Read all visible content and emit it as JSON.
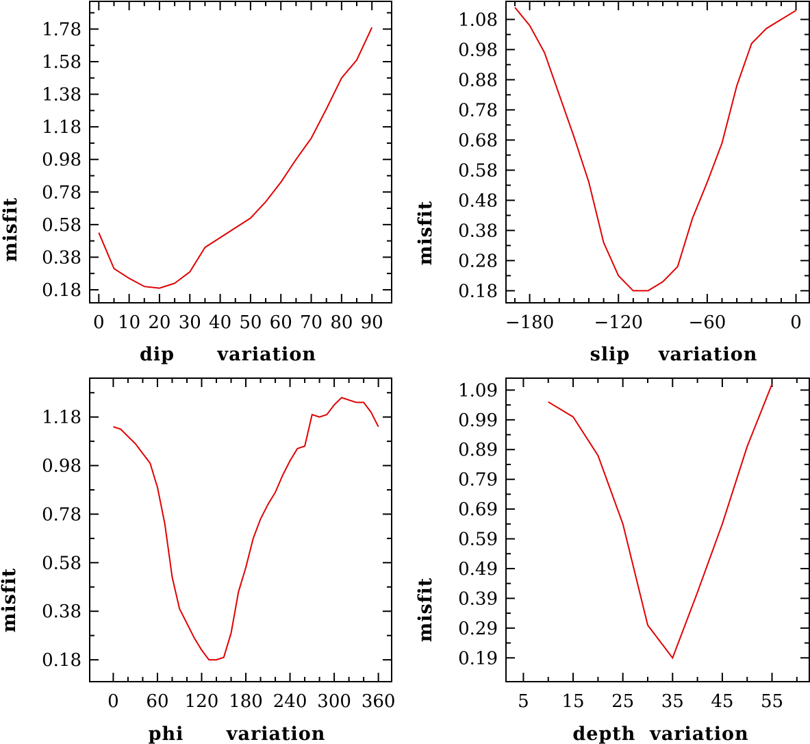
{
  "chart_data": [
    {
      "type": "line",
      "id": "dip",
      "title": "",
      "xlabel": "dip      variation",
      "ylabel": "misfit",
      "xlim": [
        -3,
        96.5
      ],
      "ylim": [
        0.1,
        1.95
      ],
      "xticks": [
        0,
        10,
        20,
        30,
        40,
        50,
        60,
        70,
        80,
        90
      ],
      "xtick_labels": [
        "0",
        "10",
        "20",
        "30",
        "40",
        "50",
        "60",
        "70",
        "80",
        "90"
      ],
      "xticks_minor": [
        5,
        15,
        25,
        35,
        45,
        55,
        65,
        75,
        85
      ],
      "yticks": [
        0.18,
        0.38,
        0.58,
        0.78,
        0.98,
        1.18,
        1.38,
        1.58,
        1.78
      ],
      "ytick_labels": [
        "0.18",
        "0.38",
        "0.58",
        "0.78",
        "0.98",
        "1.18",
        "1.38",
        "1.58",
        "1.78"
      ],
      "yticks_minor": [
        0.28,
        0.48,
        0.68,
        0.88,
        1.08,
        1.28,
        1.48,
        1.68,
        1.88
      ],
      "grid": false,
      "x": [
        0,
        5,
        10,
        15,
        20,
        25,
        30,
        35,
        40,
        45,
        50,
        55,
        60,
        65,
        70,
        75,
        80,
        85,
        90
      ],
      "values": [
        0.53,
        0.31,
        0.25,
        0.2,
        0.19,
        0.22,
        0.29,
        0.44,
        0.5,
        0.56,
        0.62,
        0.72,
        0.84,
        0.98,
        1.11,
        1.29,
        1.48,
        1.59,
        1.79
      ]
    },
    {
      "type": "line",
      "id": "slip",
      "title": "",
      "xlabel": "slip    variation",
      "ylabel": "misfit",
      "xlim": [
        -196,
        9
      ],
      "ylim": [
        0.14,
        1.14
      ],
      "xticks": [
        -180,
        -120,
        -60,
        0
      ],
      "xtick_labels": [
        "−180",
        "−120",
        "−60",
        "0"
      ],
      "xticks_minor": [
        -190,
        -170,
        -160,
        -150,
        -140,
        -130,
        -110,
        -100,
        -90,
        -80,
        -70,
        -50,
        -40,
        -30,
        -20,
        -10
      ],
      "yticks": [
        0.18,
        0.28,
        0.38,
        0.48,
        0.58,
        0.68,
        0.78,
        0.88,
        0.98,
        1.08
      ],
      "ytick_labels": [
        "0.18",
        "0.28",
        "0.38",
        "0.48",
        "0.58",
        "0.68",
        "0.78",
        "0.88",
        "0.98",
        "1.08"
      ],
      "yticks_minor": [
        0.23,
        0.33,
        0.43,
        0.53,
        0.63,
        0.73,
        0.83,
        0.93,
        1.03
      ],
      "grid": false,
      "x": [
        -190,
        -180,
        -170,
        -160,
        -150,
        -140,
        -130,
        -120,
        -110,
        -100,
        -90,
        -80,
        -70,
        -60,
        -50,
        -40,
        -30,
        -20,
        -10,
        0
      ],
      "values": [
        1.12,
        1.06,
        0.97,
        0.83,
        0.69,
        0.54,
        0.34,
        0.23,
        0.18,
        0.18,
        0.21,
        0.26,
        0.42,
        0.54,
        0.67,
        0.86,
        1.0,
        1.05,
        1.08,
        1.11
      ]
    },
    {
      "type": "line",
      "id": "phi",
      "title": "",
      "xlabel": "phi      variation",
      "ylabel": "misfit",
      "xlim": [
        -32,
        378
      ],
      "ylim": [
        0.09,
        1.34
      ],
      "xticks": [
        0,
        60,
        120,
        180,
        240,
        300,
        360
      ],
      "xtick_labels": [
        "0",
        "60",
        "120",
        "180",
        "240",
        "300",
        "360"
      ],
      "xticks_minor": [
        20,
        40,
        80,
        100,
        140,
        160,
        200,
        220,
        260,
        280,
        320,
        340
      ],
      "yticks": [
        0.18,
        0.38,
        0.58,
        0.78,
        0.98,
        1.18
      ],
      "ytick_labels": [
        "0.18",
        "0.38",
        "0.58",
        "0.78",
        "0.98",
        "1.18"
      ],
      "yticks_minor": [
        0.28,
        0.48,
        0.68,
        0.88,
        1.08,
        1.28
      ],
      "grid": false,
      "x": [
        0,
        10,
        20,
        30,
        40,
        50,
        60,
        70,
        80,
        90,
        100,
        110,
        120,
        130,
        140,
        150,
        160,
        170,
        180,
        190,
        200,
        210,
        220,
        230,
        240,
        250,
        260,
        270,
        280,
        290,
        300,
        310,
        320,
        330,
        340,
        350,
        360
      ],
      "values": [
        1.14,
        1.13,
        1.1,
        1.07,
        1.03,
        0.99,
        0.89,
        0.74,
        0.52,
        0.39,
        0.33,
        0.27,
        0.22,
        0.18,
        0.18,
        0.19,
        0.29,
        0.46,
        0.56,
        0.68,
        0.76,
        0.82,
        0.87,
        0.94,
        1.0,
        1.05,
        1.06,
        1.19,
        1.18,
        1.19,
        1.23,
        1.26,
        1.25,
        1.24,
        1.24,
        1.2,
        1.14
      ]
    },
    {
      "type": "line",
      "id": "depth",
      "title": "",
      "xlabel": "depth  variation",
      "ylabel": "misfit",
      "xlim": [
        1.5,
        62.5
      ],
      "ylim": [
        0.11,
        1.13
      ],
      "xticks": [
        5,
        15,
        25,
        35,
        45,
        55
      ],
      "xtick_labels": [
        "5",
        "15",
        "25",
        "35",
        "45",
        "55"
      ],
      "xticks_minor": [
        10,
        20,
        30,
        40,
        50,
        60
      ],
      "yticks": [
        0.19,
        0.29,
        0.39,
        0.49,
        0.59,
        0.69,
        0.79,
        0.89,
        0.99,
        1.09
      ],
      "ytick_labels": [
        "0.19",
        "0.29",
        "0.39",
        "0.49",
        "0.59",
        "0.69",
        "0.79",
        "0.89",
        "0.99",
        "1.09"
      ],
      "yticks_minor": [
        0.24,
        0.34,
        0.44,
        0.54,
        0.64,
        0.74,
        0.84,
        0.94,
        1.04
      ],
      "grid": false,
      "x": [
        10,
        15,
        20,
        25,
        30,
        35,
        40,
        45,
        50,
        55
      ],
      "values": [
        1.05,
        1.0,
        0.87,
        0.64,
        0.3,
        0.19,
        0.41,
        0.64,
        0.9,
        1.11
      ]
    }
  ],
  "colors": {
    "series": "#e00000",
    "axes": "#000000",
    "background": "#ffffff"
  }
}
